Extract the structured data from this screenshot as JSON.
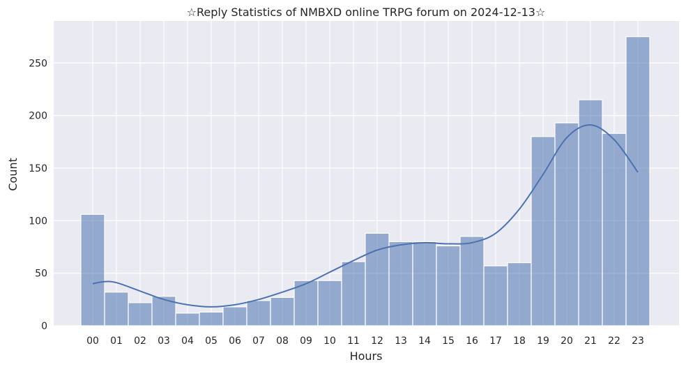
{
  "chart_data": {
    "type": "bar",
    "title": "☆Reply Statistics of NMBXD online TRPG forum on 2024-12-13☆",
    "xlabel": "Hours",
    "ylabel": "Count",
    "categories": [
      "00",
      "01",
      "02",
      "03",
      "04",
      "05",
      "06",
      "07",
      "08",
      "09",
      "10",
      "11",
      "12",
      "13",
      "14",
      "15",
      "16",
      "17",
      "18",
      "19",
      "20",
      "21",
      "22",
      "23"
    ],
    "values": [
      106,
      32,
      22,
      28,
      12,
      13,
      18,
      24,
      27,
      43,
      43,
      61,
      88,
      80,
      80,
      76,
      85,
      57,
      60,
      180,
      193,
      215,
      183,
      275
    ],
    "yticks": [
      0,
      50,
      100,
      150,
      200,
      250
    ],
    "ylim": [
      0,
      290
    ],
    "grid": true,
    "kde": {
      "name": "KDE",
      "x": [
        0,
        0.5,
        1,
        2,
        3,
        4,
        5,
        6,
        7,
        8,
        9,
        10,
        11,
        12,
        13,
        14,
        15,
        16,
        17,
        18,
        19,
        20,
        21,
        22,
        23
      ],
      "y": [
        40,
        42,
        41,
        33,
        25,
        20,
        18,
        20,
        25,
        32,
        40,
        51,
        62,
        72,
        77,
        79,
        78,
        79,
        88,
        111,
        144,
        179,
        191,
        177,
        146
      ]
    },
    "colors": {
      "bar": "#4c72b0",
      "line": "#4c72b0",
      "background": "#eaeaf2"
    }
  }
}
